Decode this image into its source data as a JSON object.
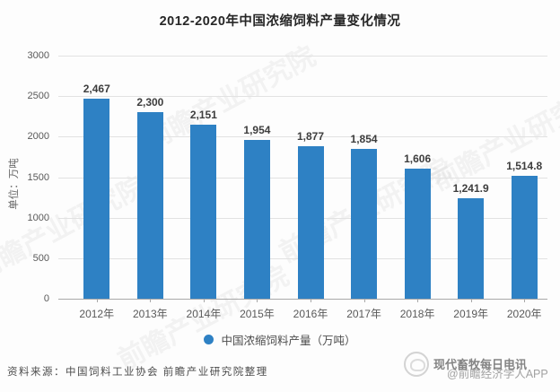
{
  "title": "2012-2020年中国浓缩饲料产量变化情况",
  "chart_data": {
    "type": "bar",
    "title": "2012-2020年中国浓缩饲料产量变化情况",
    "categories": [
      "2012年",
      "2013年",
      "2014年",
      "2015年",
      "2016年",
      "2017年",
      "2018年",
      "2019年",
      "2020年"
    ],
    "values": [
      2467,
      2300,
      2151,
      1954,
      1877,
      1854,
      1606,
      1241.9,
      1514.8
    ],
    "value_labels": [
      "2,467",
      "2,300",
      "2,151",
      "1,954",
      "1,877",
      "1,854",
      "1,606",
      "1,241.9",
      "1,514.8"
    ],
    "xlabel": "",
    "ylabel": "单位：万吨",
    "ylim": [
      0,
      3000
    ],
    "yticks": [
      0,
      500,
      1000,
      1500,
      2000,
      2500,
      3000
    ],
    "grid": true,
    "legend_position": "bottom",
    "series_name": "中国浓缩饲料产量（万吨）",
    "bar_color": "#2e81c4"
  },
  "legend": {
    "label": "中国浓缩饲料产量（万吨）"
  },
  "axis": {
    "unit_label": "单位：万吨"
  },
  "source": {
    "text": "资料来源：中国饲料工业协会 前瞻产业研究院整理"
  },
  "watermarks": {
    "diagonal_text": "前瞻产业研究院",
    "footer_brand": "现代畜牧每日电讯",
    "footer_app": "@前瞻经济学人APP"
  },
  "colors": {
    "bar": "#2e81c4",
    "grid": "#e2e2e2",
    "axis_line": "#a8a8a8",
    "tick_text": "#595959",
    "value_text": "#3d3d3d",
    "title_text": "#262626"
  }
}
